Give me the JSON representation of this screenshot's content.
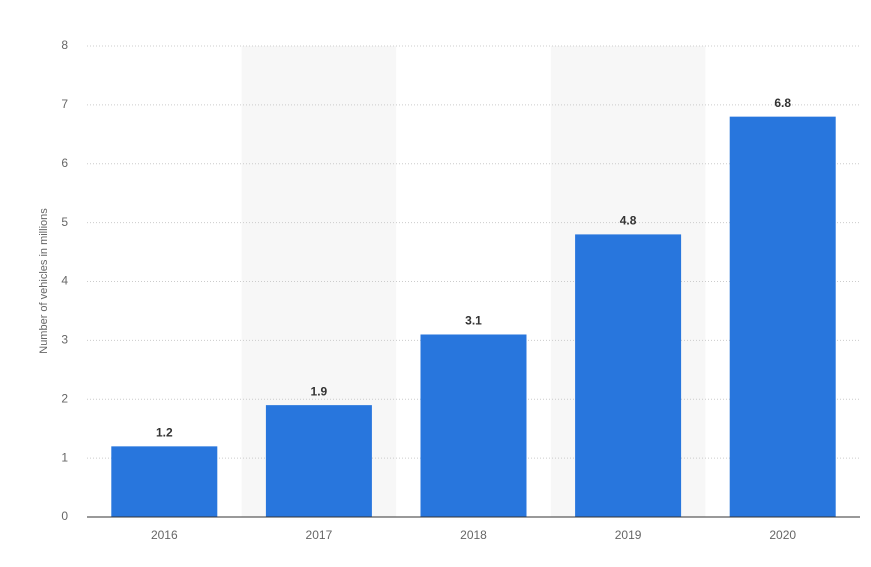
{
  "chart_data": {
    "type": "bar",
    "y_axis_label": "Number of vehicles in millions",
    "categories": [
      "2016",
      "2017",
      "2018",
      "2019",
      "2020"
    ],
    "values": [
      1.2,
      1.9,
      3.1,
      4.8,
      6.8
    ],
    "color": "#2876dd",
    "ylim": [
      0,
      8
    ],
    "yticks": [
      0,
      1,
      2,
      3,
      4,
      5,
      6,
      7,
      8
    ],
    "grid": true,
    "alternate_shading": true
  }
}
